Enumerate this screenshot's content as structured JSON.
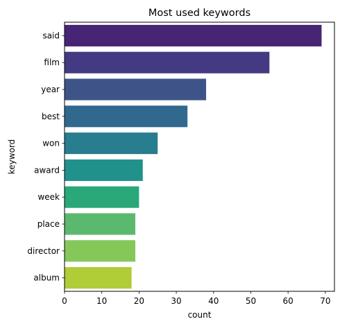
{
  "chart_data": {
    "type": "bar",
    "orientation": "horizontal",
    "title": "Most used keywords",
    "xlabel": "count",
    "ylabel": "keyword",
    "categories": [
      "said",
      "film",
      "year",
      "best",
      "won",
      "award",
      "week",
      "place",
      "director",
      "album"
    ],
    "values": [
      69,
      55,
      38,
      33,
      25,
      21,
      20,
      19,
      19,
      18
    ],
    "colors": [
      "#482475",
      "#443a83",
      "#3e5489",
      "#31688e",
      "#287d8e",
      "#21918c",
      "#2aa879",
      "#5ab96f",
      "#86c75a",
      "#b0cc36"
    ],
    "xlim": [
      0,
      72.45
    ],
    "xticks": [
      0,
      10,
      20,
      30,
      40,
      50,
      60,
      70
    ],
    "grid": false,
    "legend": "none"
  }
}
